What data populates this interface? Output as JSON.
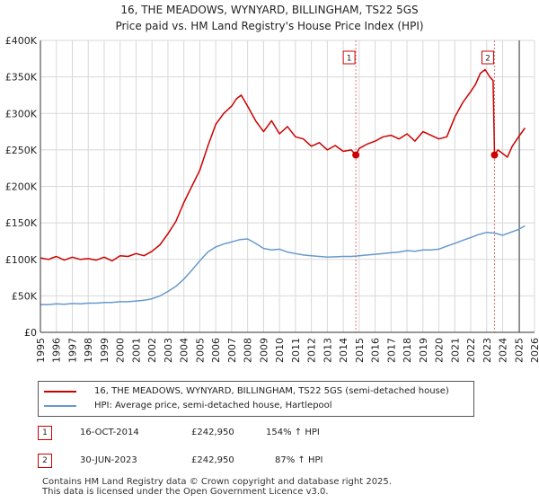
{
  "title_line1": "16, THE MEADOWS, WYNYARD, BILLINGHAM, TS22 5GS",
  "title_line2": "Price paid vs. HM Land Registry's House Price Index (HPI)",
  "colors": {
    "property": "#cc0000",
    "hpi": "#6699cc",
    "marker_line": "#e07070",
    "grid": "#d8d8d8"
  },
  "chart_data": {
    "type": "line",
    "title": "16, THE MEADOWS, WYNYARD, BILLINGHAM, TS22 5GS",
    "subtitle": "Price paid vs. HM Land Registry's House Price Index (HPI)",
    "xlabel": "",
    "ylabel": "",
    "xlim": [
      1995,
      2026
    ],
    "ylim": [
      0,
      400000
    ],
    "x_ticks": [
      "1995",
      "1996",
      "1997",
      "1998",
      "1999",
      "2000",
      "2001",
      "2002",
      "2003",
      "2004",
      "2005",
      "2006",
      "2007",
      "2008",
      "2009",
      "2010",
      "2011",
      "2012",
      "2013",
      "2014",
      "2015",
      "2016",
      "2017",
      "2018",
      "2019",
      "2020",
      "2021",
      "2022",
      "2023",
      "2024",
      "2025",
      "2026"
    ],
    "y_ticks": [
      {
        "value": 0,
        "label": "£0"
      },
      {
        "value": 50000,
        "label": "£50K"
      },
      {
        "value": 100000,
        "label": "£100K"
      },
      {
        "value": 150000,
        "label": "£150K"
      },
      {
        "value": 200000,
        "label": "£200K"
      },
      {
        "value": 250000,
        "label": "£250K"
      },
      {
        "value": 300000,
        "label": "£300K"
      },
      {
        "value": 350000,
        "label": "£350K"
      },
      {
        "value": 400000,
        "label": "£400K"
      }
    ],
    "grid": true,
    "series": [
      {
        "name": "16, THE MEADOWS, WYNYARD, BILLINGHAM, TS22 5GS (semi-detached house)",
        "x": [
          1995.0,
          1995.5,
          1996.0,
          1996.5,
          1997.0,
          1997.5,
          1998.0,
          1998.5,
          1999.0,
          1999.5,
          2000.0,
          2000.5,
          2001.0,
          2001.5,
          2002.0,
          2002.5,
          2003.0,
          2003.5,
          2004.0,
          2004.5,
          2005.0,
          2005.5,
          2006.0,
          2006.5,
          2007.0,
          2007.3,
          2007.6,
          2008.0,
          2008.5,
          2009.0,
          2009.5,
          2010.0,
          2010.5,
          2011.0,
          2011.5,
          2012.0,
          2012.5,
          2013.0,
          2013.5,
          2014.0,
          2014.5,
          2014.79,
          2015.0,
          2015.5,
          2016.0,
          2016.5,
          2017.0,
          2017.5,
          2018.0,
          2018.5,
          2019.0,
          2019.5,
          2020.0,
          2020.5,
          2021.0,
          2021.5,
          2022.0,
          2022.3,
          2022.6,
          2022.9,
          2023.2,
          2023.4,
          2023.49,
          2023.7,
          2024.0,
          2024.3,
          2024.6,
          2025.0,
          2025.4
        ],
        "values": [
          102000,
          100000,
          104000,
          99000,
          103000,
          100000,
          101000,
          99000,
          103000,
          98000,
          105000,
          104000,
          108000,
          105000,
          111000,
          120000,
          135000,
          152000,
          178000,
          200000,
          222000,
          255000,
          285000,
          300000,
          310000,
          320000,
          325000,
          310000,
          290000,
          275000,
          290000,
          272000,
          282000,
          268000,
          265000,
          255000,
          260000,
          250000,
          256000,
          248000,
          250000,
          242950,
          252000,
          258000,
          262000,
          268000,
          270000,
          265000,
          272000,
          262000,
          275000,
          270000,
          265000,
          268000,
          295000,
          315000,
          330000,
          340000,
          355000,
          360000,
          350000,
          345000,
          242950,
          250000,
          245000,
          240000,
          255000,
          268000,
          280000
        ]
      },
      {
        "name": "HPI: Average price, semi-detached house, Hartlepool",
        "x": [
          1995.0,
          1995.5,
          1996.0,
          1996.5,
          1997.0,
          1997.5,
          1998.0,
          1998.5,
          1999.0,
          1999.5,
          2000.0,
          2000.5,
          2001.0,
          2001.5,
          2002.0,
          2002.5,
          2003.0,
          2003.5,
          2004.0,
          2004.5,
          2005.0,
          2005.5,
          2006.0,
          2006.5,
          2007.0,
          2007.5,
          2008.0,
          2008.5,
          2009.0,
          2009.5,
          2010.0,
          2010.5,
          2011.0,
          2011.5,
          2012.0,
          2012.5,
          2013.0,
          2013.5,
          2014.0,
          2014.5,
          2015.0,
          2015.5,
          2016.0,
          2016.5,
          2017.0,
          2017.5,
          2018.0,
          2018.5,
          2019.0,
          2019.5,
          2020.0,
          2020.5,
          2021.0,
          2021.5,
          2022.0,
          2022.5,
          2023.0,
          2023.5,
          2024.0,
          2024.5,
          2025.0,
          2025.4
        ],
        "values": [
          38000,
          38000,
          39000,
          38500,
          39500,
          39000,
          40000,
          40000,
          41000,
          41000,
          42000,
          42000,
          43000,
          44000,
          46000,
          50000,
          56000,
          63000,
          73000,
          85000,
          98000,
          110000,
          117000,
          121000,
          124000,
          127000,
          128000,
          122000,
          115000,
          113000,
          114000,
          110000,
          108000,
          106000,
          105000,
          104000,
          103000,
          103500,
          104000,
          104000,
          105000,
          106000,
          107000,
          108000,
          109000,
          110000,
          112000,
          111000,
          113000,
          113000,
          114000,
          118000,
          122000,
          126000,
          130000,
          134000,
          137000,
          136000,
          133000,
          137000,
          141000,
          146000
        ]
      }
    ],
    "markers": [
      {
        "label": "1",
        "x": 2014.79,
        "value": 242950
      },
      {
        "label": "2",
        "x": 2023.49,
        "value": 242950
      }
    ],
    "legend": {
      "entries": [
        "16, THE MEADOWS, WYNYARD, BILLINGHAM, TS22 5GS (semi-detached house)",
        "HPI: Average price, semi-detached house, Hartlepool"
      ]
    }
  },
  "transactions": [
    {
      "num": "1",
      "date": "16-OCT-2014",
      "price": "£242,950",
      "hpi": "154% ↑ HPI"
    },
    {
      "num": "2",
      "date": "30-JUN-2023",
      "price": "£242,950",
      "hpi": "87% ↑ HPI"
    }
  ],
  "footer": {
    "line1": "Contains HM Land Registry data © Crown copyright and database right 2025.",
    "line2": "This data is licensed under the Open Government Licence v3.0."
  }
}
